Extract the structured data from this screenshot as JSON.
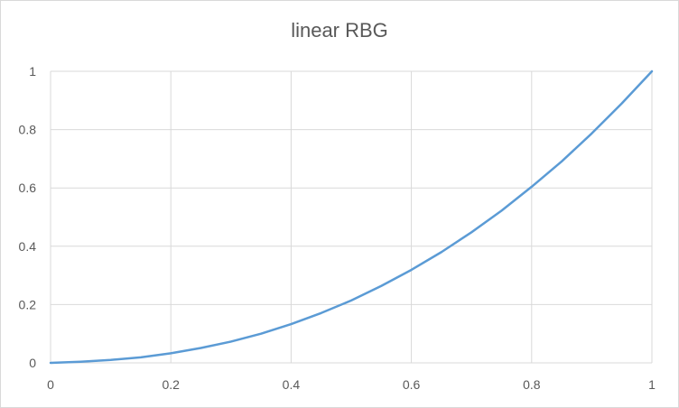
{
  "chart_data": {
    "type": "line",
    "title": "linear RBG",
    "xlabel": "",
    "ylabel": "",
    "xlim": [
      0,
      1
    ],
    "ylim": [
      0,
      1
    ],
    "x_ticks": [
      "0",
      "0.2",
      "0.4",
      "0.6",
      "0.8",
      "1"
    ],
    "y_ticks": [
      "0",
      "0.2",
      "0.4",
      "0.6",
      "0.8",
      "1"
    ],
    "grid": true,
    "legend": "none",
    "series": [
      {
        "color": "#5b9bd5",
        "x": [
          0,
          0.05,
          0.1,
          0.15,
          0.2,
          0.25,
          0.3,
          0.35,
          0.4,
          0.45,
          0.5,
          0.55,
          0.6,
          0.65,
          0.7,
          0.75,
          0.8,
          0.85,
          0.9,
          0.95,
          1
        ],
        "y": [
          0,
          0.004,
          0.01,
          0.019,
          0.033,
          0.051,
          0.073,
          0.1,
          0.133,
          0.171,
          0.214,
          0.264,
          0.319,
          0.38,
          0.448,
          0.522,
          0.604,
          0.691,
          0.787,
          0.89,
          1
        ]
      }
    ]
  }
}
